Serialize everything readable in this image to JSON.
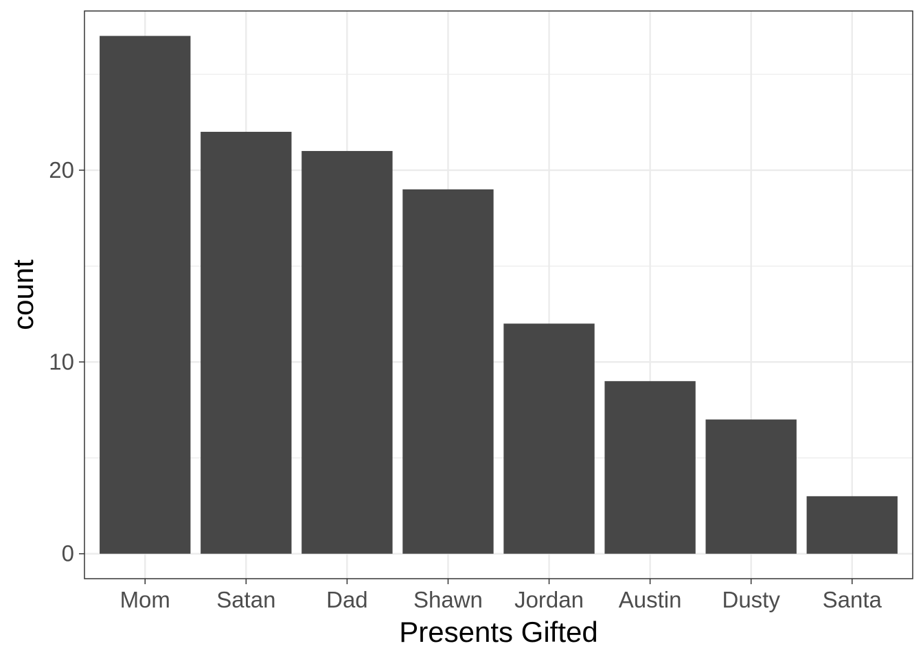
{
  "chart_data": {
    "type": "bar",
    "categories": [
      "Mom",
      "Satan",
      "Dad",
      "Shawn",
      "Jordan",
      "Austin",
      "Dusty",
      "Santa"
    ],
    "values": [
      27,
      22,
      21,
      19,
      12,
      9,
      7,
      3
    ],
    "xlabel": "Presents Gifted",
    "ylabel": "count",
    "ylim": [
      -1.3,
      28.3
    ],
    "yticks": [
      0,
      10,
      20
    ],
    "yticks_minor": [
      5,
      15,
      25
    ],
    "grid": true,
    "legend": "none",
    "colors": {
      "bar": "#474747",
      "grid": "#ebebeb",
      "panel_border": "#333333",
      "tick_label": "#4d4d4d",
      "axis_title": "#000000"
    }
  }
}
